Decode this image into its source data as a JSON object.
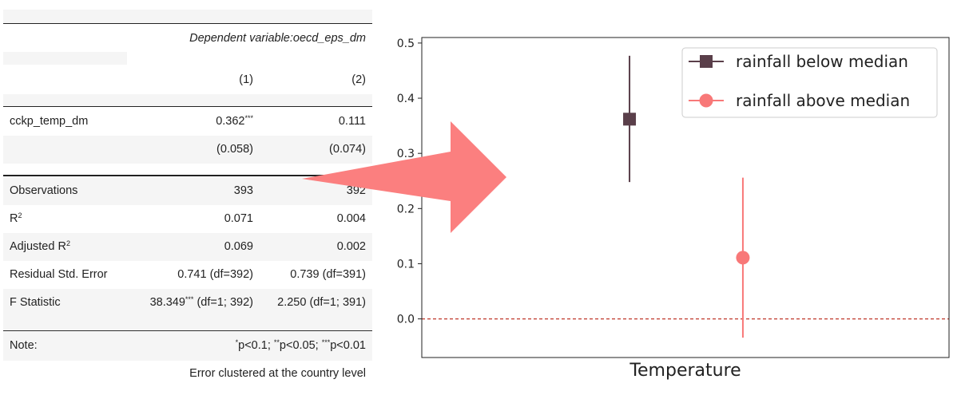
{
  "table": {
    "dep_var_label": "Dependent variable:oecd_eps_dm",
    "col1": "(1)",
    "col2": "(2)",
    "rows": [
      {
        "label": "cckp_temp_dm",
        "v1": "0.362",
        "v1_sup": "***",
        "v2": "0.111"
      },
      {
        "label": "",
        "v1": "(0.058)",
        "v2": "(0.074)"
      }
    ],
    "stats": [
      {
        "label": "Observations",
        "v1": "393",
        "v2": "392"
      },
      {
        "label": "R",
        "label_sup": "2",
        "v1": "0.071",
        "v2": "0.004"
      },
      {
        "label": "Adjusted R",
        "label_sup": "2",
        "v1": "0.069",
        "v2": "0.002"
      },
      {
        "label": "Residual Std. Error",
        "v1": "0.741 (df=392)",
        "v2": "0.739 (df=391)"
      },
      {
        "label": "F Statistic",
        "v1_pre": "38.349",
        "v1_sup": "***",
        "v1": " (df=1; 392)",
        "v2": "2.250 (df=1; 391)"
      }
    ],
    "note_label": "Note:",
    "note": {
      "s1": "*",
      "t1": "p<0.1; ",
      "s2": "**",
      "t2": "p<0.05; ",
      "s3": "***",
      "t3": "p<0.01"
    },
    "footer": "Error clustered at the country level"
  },
  "colors": {
    "arrow": "#fb7f7f",
    "series1": "#5a3f4a",
    "series2": "#f87878",
    "zero_line": "#c0392b"
  },
  "chart_data": {
    "type": "scatter",
    "xlabel": "Temperature",
    "ylabel": "",
    "ylim": [
      -0.07,
      0.51
    ],
    "yticks": [
      0.0,
      0.1,
      0.2,
      0.3,
      0.4,
      0.5
    ],
    "ytick_labels": [
      "0.0",
      "0.1",
      "0.2",
      "0.3",
      "0.4",
      "0.5"
    ],
    "grid": false,
    "legend_position": "top-right",
    "reference_line_y": 0.0,
    "series": [
      {
        "name": "rainfall below median",
        "marker": "square",
        "y": 0.362,
        "ci_low": 0.248,
        "ci_high": 0.477
      },
      {
        "name": "rainfall above median",
        "marker": "circle",
        "y": 0.111,
        "ci_low": -0.034,
        "ci_high": 0.256
      }
    ]
  }
}
